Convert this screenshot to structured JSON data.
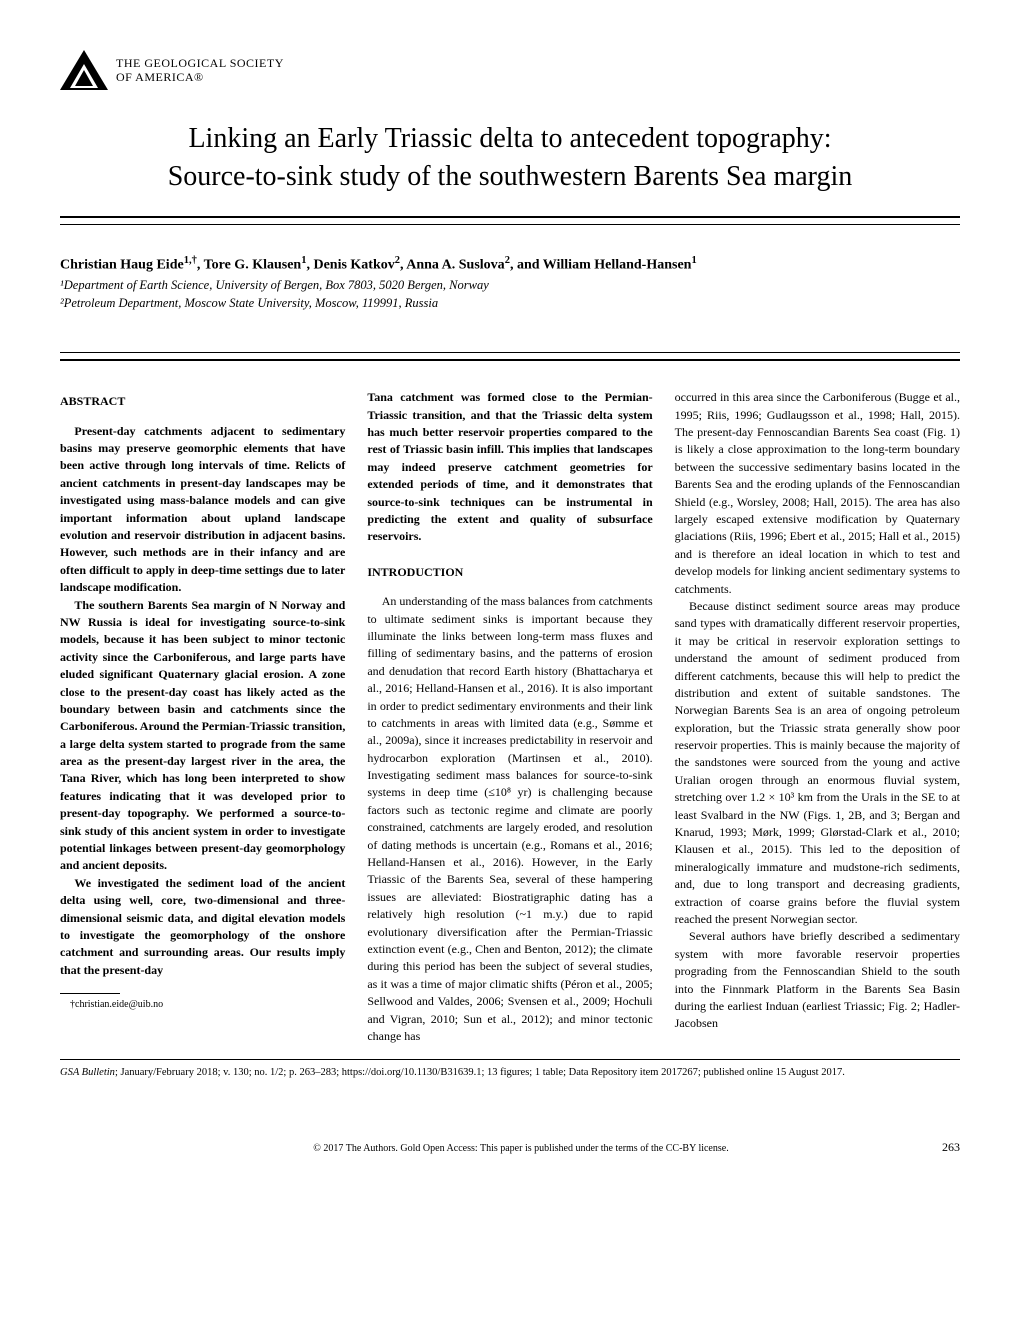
{
  "logo": {
    "society_line1": "THE GEOLOGICAL SOCIETY",
    "society_line2": "OF AMERICA®"
  },
  "title_line1": "Linking an Early Triassic delta to antecedent topography:",
  "title_line2": "Source-to-sink study of the southwestern Barents Sea margin",
  "authors_html": "Christian Haug Eide<sup>1,†</sup>, Tore G. Klausen<sup>1</sup>, Denis Katkov<sup>2</sup>, Anna A. Suslova<sup>2</sup>, and William Helland-Hansen<sup>1</sup>",
  "affiliations": [
    "¹Department of Earth Science, University of Bergen, Box 7803, 5020 Bergen, Norway",
    "²Petroleum Department, Moscow State University, Moscow, 119991, Russia"
  ],
  "abstract_heading": "ABSTRACT",
  "abstract_paragraphs": [
    "Present-day catchments adjacent to sedimentary basins may preserve geomorphic elements that have been active through long intervals of time. Relicts of ancient catchments in present-day landscapes may be investigated using mass-balance models and can give important information about upland landscape evolution and reservoir distribution in adjacent basins. However, such methods are in their infancy and are often difficult to apply in deep-time settings due to later landscape modification.",
    "The southern Barents Sea margin of N Norway and NW Russia is ideal for investigating source-to-sink models, because it has been subject to minor tectonic activity since the Carboniferous, and large parts have eluded significant Quaternary glacial erosion. A zone close to the present-day coast has likely acted as the boundary between basin and catchments since the Carboniferous. Around the Permian-Triassic transition, a large delta system started to prograde from the same area as the present-day largest river in the area, the Tana River, which has long been interpreted to show features indicating that it was developed prior to present-day topography. We performed a source-to-sink study of this ancient system in order to investigate potential linkages between present-day geomorphology and ancient deposits.",
    "We investigated the sediment load of the ancient delta using well, core, two-dimensional and three-dimensional seismic data, and digital elevation models to investigate the geomorphology of the onshore catchment and surrounding areas. Our results imply that the present-day"
  ],
  "col2_bold_continuation": "Tana catchment was formed close to the Permian-Triassic transition, and that the Triassic delta system has much better reservoir properties compared to the rest of Triassic basin infill. This implies that landscapes may indeed preserve catchment geometries for extended periods of time, and it demonstrates that source-to-sink techniques can be instrumental in predicting the extent and quality of subsurface reservoirs.",
  "introduction_heading": "INTRODUCTION",
  "intro_para": "An understanding of the mass balances from catchments to ultimate sediment sinks is important because they illuminate the links between long-term mass fluxes and filling of sedimentary basins, and the patterns of erosion and denudation that record Earth history (Bhattacharya et al., 2016; Helland-Hansen et al., 2016). It is also important in order to predict sedimentary environments and their link to catchments in areas with limited data (e.g., Sømme et al., 2009a), since it increases predictability in reservoir and hydrocarbon exploration (Martinsen et al., 2010). Investigating sediment mass balances for source-to-sink systems in deep time (≤10⁸ yr) is challenging because factors such as tectonic regime and climate are poorly constrained, catchments are largely eroded, and resolution of dating methods is uncertain (e.g., Romans et al., 2016; Helland-Hansen et al., 2016). However, in the Early Triassic of the Barents Sea, several of these hampering issues are alleviated: Biostratigraphic dating has a relatively high resolution (~1 m.y.) due to rapid evolutionary diversification after the Permian-Triassic extinction event (e.g., Chen and Benton, 2012); the climate during this period has been the subject of several studies, as it was a time of major climatic shifts (Péron et al., 2005; Sellwood and Valdes, 2006; Svensen et al., 2009; Hochuli and Vigran, 2010; Sun et al., 2012); and minor tectonic change has",
  "col3_para1": "occurred in this area since the Carboniferous (Bugge et al., 1995; Riis, 1996; Gudlaugsson et al., 1998; Hall, 2015). The present-day Fennoscandian Barents Sea coast (Fig. 1) is likely a close approximation to the long-term boundary between the successive sedimentary basins located in the Barents Sea and the eroding uplands of the Fennoscandian Shield (e.g., Worsley, 2008; Hall, 2015). The area has also largely escaped extensive modification by Quaternary glaciations (Riis, 1996; Ebert et al., 2015; Hall et al., 2015) and is therefore an ideal location in which to test and develop models for linking ancient sedimentary systems to catchments.",
  "col3_para2": "Because distinct sediment source areas may produce sand types with dramatically different reservoir properties, it may be critical in reservoir exploration settings to understand the amount of sediment produced from different catchments, because this will help to predict the distribution and extent of suitable sandstones. The Norwegian Barents Sea is an area of ongoing petroleum exploration, but the Triassic strata generally show poor reservoir properties. This is mainly because the majority of the sandstones were sourced from the young and active Uralian orogen through an enormous fluvial system, stretching over 1.2 × 10³ km from the Urals in the SE to at least Svalbard in the NW (Figs. 1, 2B, and 3; Bergan and Knarud, 1993; Mørk, 1999; Glørstad-Clark et al., 2010; Klausen et al., 2015). This led to the deposition of mineralogically immature and mudstone-rich sediments, and, due to long transport and decreasing gradients, extraction of coarse grains before the fluvial system reached the present Norwegian sector.",
  "col3_para3": "Several authors have briefly described a sedimentary system with more favorable reservoir properties prograding from the Fennoscandian Shield to the south into the Finnmark Platform in the Barents Sea Basin during the earliest Induan (earliest Triassic; Fig. 2; Hadler-Jacobsen",
  "footnote": "†christian.eide@uib.no",
  "citation": "GSA Bulletin; January/February 2018; v. 130; no. 1/2; p. 263–283; https://doi.org/10.1130/B31639.1; 13 figures; 1 table; Data Repository item 2017267; published online 15 August 2017.",
  "copyright": "© 2017 The Authors. Gold Open Access: This paper is published under the terms of the CC-BY license.",
  "page_number": "263"
}
